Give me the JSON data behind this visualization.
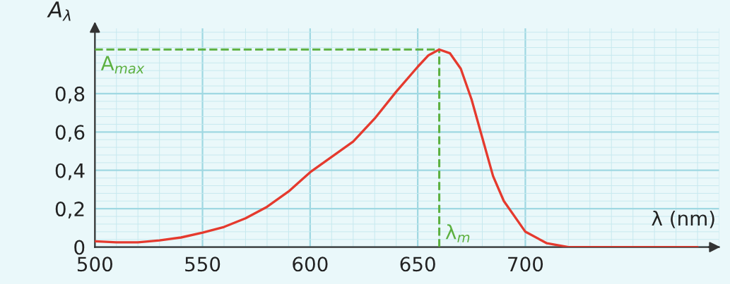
{
  "chart_data": {
    "type": "line",
    "xlabel": "λ (nm)",
    "ylabel": "A$_{λ}$",
    "x": [
      500,
      510,
      520,
      530,
      540,
      550,
      560,
      570,
      580,
      590,
      600,
      610,
      620,
      630,
      640,
      650,
      655,
      660,
      665,
      670,
      675,
      680,
      685,
      690,
      700,
      710,
      720,
      740,
      760,
      780
    ],
    "series": [
      {
        "color": "#e53a2e",
        "values": [
          0.03,
          0.025,
          0.025,
          0.035,
          0.05,
          0.075,
          0.105,
          0.15,
          0.21,
          0.29,
          0.39,
          0.47,
          0.55,
          0.67,
          0.81,
          0.94,
          1.0,
          1.03,
          1.01,
          0.93,
          0.77,
          0.57,
          0.37,
          0.24,
          0.08,
          0.02,
          0.0,
          0.0,
          0.0,
          0.0
        ]
      }
    ],
    "xlim": [
      500,
      790
    ],
    "ylim": [
      0,
      1.14
    ],
    "xticks": [
      500,
      550,
      600,
      650,
      700
    ],
    "yticks": [
      0,
      {
        "value": 0.2,
        "label": "0,2"
      },
      {
        "value": 0.4,
        "label": "0,4"
      },
      {
        "value": 0.6,
        "label": "0,6"
      },
      {
        "value": 0.8,
        "label": "0,8"
      }
    ],
    "ref_lines": [
      {
        "axis": "y",
        "value": 1.03,
        "label": "A$_{max}$",
        "color": "#5cb040",
        "line_style": "dashed"
      },
      {
        "axis": "x",
        "value": 660,
        "label": "λ$_{m}$",
        "color": "#5cb040",
        "line_style": "dashed"
      }
    ],
    "grid": true,
    "marker": "none",
    "line_style": "solid"
  }
}
